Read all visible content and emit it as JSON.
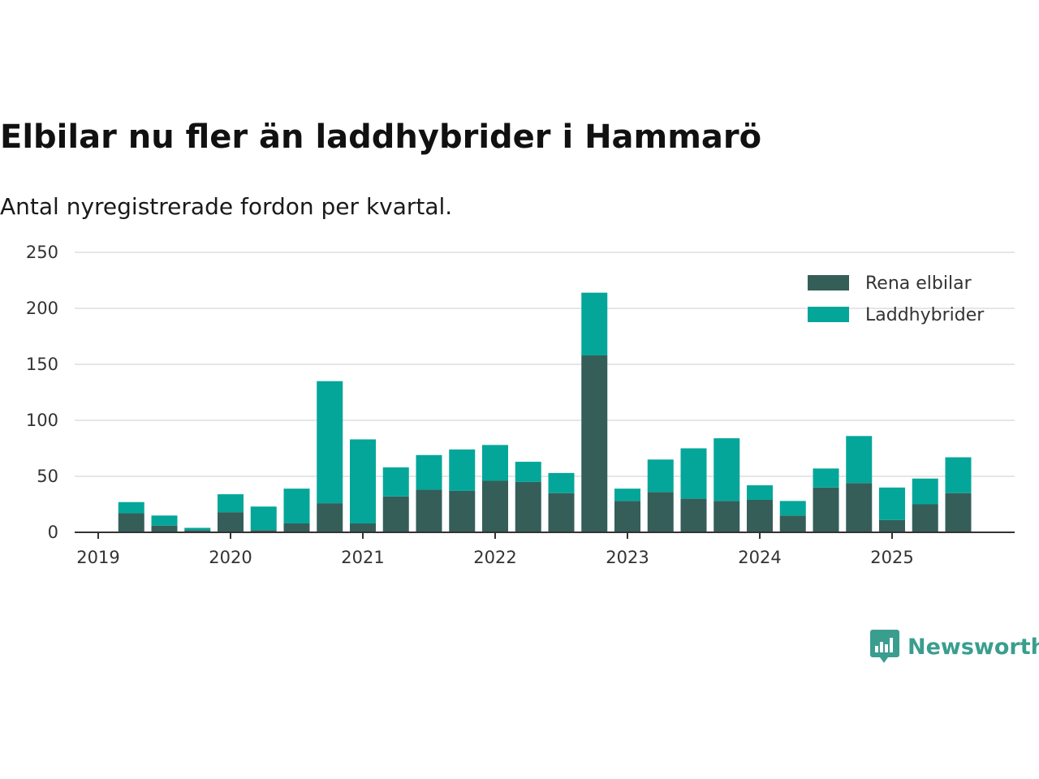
{
  "chart_data": {
    "type": "bar",
    "stacked": true,
    "title": "Elbilar nu fler än laddhybrider i Hammarö",
    "subtitle": "Antal nyregistrerade fordon per kvartal.",
    "xlabel": "",
    "ylabel": "",
    "ylim": [
      0,
      250
    ],
    "yticks": [
      0,
      50,
      100,
      150,
      200,
      250
    ],
    "x_tick_labels": [
      "2019",
      "2020",
      "2021",
      "2022",
      "2023",
      "2024",
      "2025"
    ],
    "x_start": 2019,
    "categories": [
      "2019 Q2",
      "2019 Q3",
      "2019 Q4",
      "2020 Q1",
      "2020 Q2",
      "2020 Q3",
      "2020 Q4",
      "2021 Q1",
      "2021 Q2",
      "2021 Q3",
      "2021 Q4",
      "2022 Q1",
      "2022 Q2",
      "2022 Q3",
      "2022 Q4",
      "2023 Q1",
      "2023 Q2",
      "2023 Q3",
      "2023 Q4",
      "2024 Q1",
      "2024 Q2",
      "2024 Q3",
      "2024 Q4",
      "2025 Q1",
      "2025 Q2",
      "2025 Q3"
    ],
    "x": [
      2019.25,
      2019.5,
      2019.75,
      2020.0,
      2020.25,
      2020.5,
      2020.75,
      2021.0,
      2021.25,
      2021.5,
      2021.75,
      2022.0,
      2022.25,
      2022.5,
      2022.75,
      2023.0,
      2023.25,
      2023.5,
      2023.75,
      2024.0,
      2024.25,
      2024.5,
      2024.75,
      2025.0,
      2025.25,
      2025.5
    ],
    "grid": true,
    "legend_position": "top-right",
    "series": [
      {
        "name": "Rena elbilar",
        "color": "#355e59",
        "values": [
          17,
          6,
          2,
          18,
          2,
          8,
          26,
          8,
          32,
          38,
          37,
          46,
          45,
          35,
          158,
          28,
          36,
          30,
          28,
          29,
          15,
          40,
          44,
          11,
          25,
          35
        ]
      },
      {
        "name": "Laddhybrider",
        "color": "#04a69a",
        "values": [
          10,
          9,
          2,
          16,
          21,
          31,
          109,
          75,
          26,
          31,
          37,
          32,
          18,
          18,
          56,
          11,
          29,
          45,
          56,
          13,
          13,
          17,
          42,
          29,
          23,
          32
        ]
      }
    ]
  },
  "brand": {
    "name": "Newsworthy",
    "color": "#3a9e8f"
  }
}
